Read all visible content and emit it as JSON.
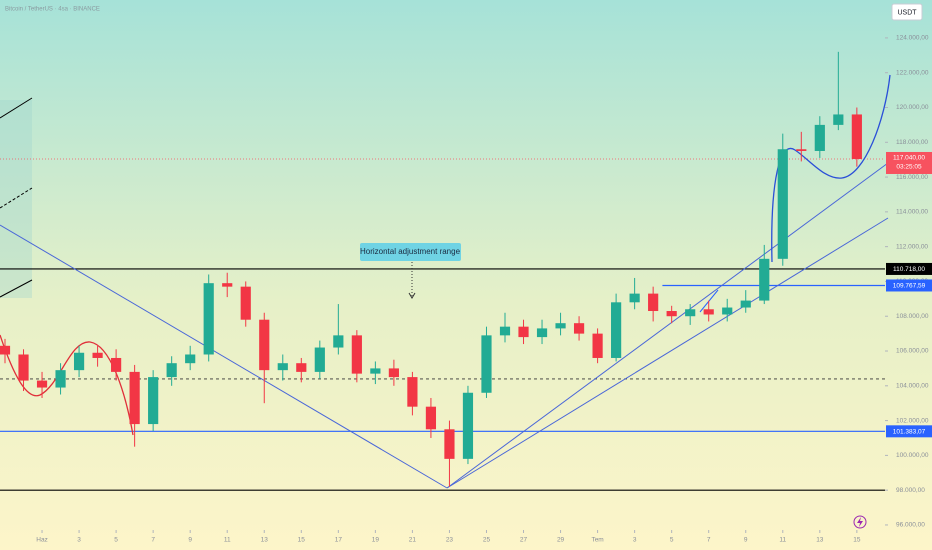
{
  "header": {
    "symbol": "Bitcoin / TetherUS · 4sa · BINANCE",
    "currency_button": "USDT"
  },
  "chart_data": {
    "type": "candlestick",
    "x": [
      -2,
      -1,
      0,
      1,
      2,
      3,
      4,
      5,
      6,
      7,
      8,
      9,
      10,
      11,
      12,
      13,
      14,
      15,
      16,
      17,
      18,
      19,
      20,
      21,
      22,
      23,
      24,
      25,
      26,
      27,
      28,
      29,
      30,
      31,
      32,
      33,
      34,
      35,
      36,
      37,
      38,
      39,
      40,
      41,
      42,
      43,
      44
    ],
    "open": [
      106300,
      105800,
      104300,
      103900,
      104900,
      105900,
      105600,
      104800,
      101800,
      104500,
      105300,
      105800,
      109900,
      109700,
      107800,
      104900,
      105300,
      104800,
      106200,
      106900,
      104700,
      105000,
      104500,
      102800,
      101500,
      99800,
      103600,
      106900,
      107400,
      106800,
      107300,
      107600,
      107000,
      105600,
      108800,
      109300,
      108300,
      108000,
      108400,
      108100,
      108500,
      108900,
      111300,
      117600,
      117500,
      119000,
      119600
    ],
    "high": [
      106700,
      106100,
      104800,
      105300,
      106300,
      106300,
      106100,
      105200,
      104900,
      105700,
      106300,
      110400,
      110500,
      110000,
      108200,
      105800,
      105600,
      106600,
      108700,
      107200,
      105400,
      105500,
      104800,
      103300,
      102000,
      104000,
      107400,
      108200,
      107800,
      107800,
      108200,
      108000,
      107300,
      109300,
      110200,
      109700,
      108600,
      108700,
      108900,
      109000,
      109500,
      112100,
      118500,
      118600,
      119500,
      123200,
      120000
    ],
    "low": [
      105300,
      103700,
      103300,
      103500,
      104500,
      105100,
      104300,
      100500,
      101400,
      104000,
      104900,
      105400,
      109100,
      107400,
      103000,
      104300,
      104200,
      104400,
      105800,
      104200,
      104100,
      104000,
      102300,
      101000,
      98200,
      99500,
      103300,
      106500,
      106400,
      106400,
      106900,
      106600,
      105300,
      105400,
      108400,
      107700,
      107600,
      107500,
      107700,
      107700,
      108200,
      108700,
      110900,
      116900,
      117100,
      118700,
      116600
    ],
    "close": [
      105800,
      104300,
      103900,
      104900,
      105900,
      105600,
      104800,
      101800,
      104500,
      105300,
      105800,
      109900,
      109700,
      107800,
      104900,
      105300,
      104800,
      106200,
      106900,
      104700,
      105000,
      104500,
      102800,
      101500,
      99800,
      103600,
      106900,
      107400,
      106800,
      107300,
      107600,
      107000,
      105600,
      108800,
      109300,
      108300,
      108000,
      108400,
      108100,
      108500,
      108900,
      111300,
      117600,
      117500,
      119000,
      119600,
      117040
    ],
    "up_color": "#22ab94",
    "down_color": "#f23645",
    "xlim": [
      -2.27,
      45.52
    ],
    "ylim": [
      95710,
      126180
    ],
    "xticks": [
      {
        "value": 0,
        "label": "Haz"
      },
      {
        "value": 2,
        "label": "3"
      },
      {
        "value": 4,
        "label": "5"
      },
      {
        "value": 6,
        "label": "7"
      },
      {
        "value": 8,
        "label": "9"
      },
      {
        "value": 10,
        "label": "11"
      },
      {
        "value": 12,
        "label": "13"
      },
      {
        "value": 14,
        "label": "15"
      },
      {
        "value": 16,
        "label": "17"
      },
      {
        "value": 18,
        "label": "19"
      },
      {
        "value": 20,
        "label": "21"
      },
      {
        "value": 22,
        "label": "23"
      },
      {
        "value": 24,
        "label": "25"
      },
      {
        "value": 26,
        "label": "27"
      },
      {
        "value": 28,
        "label": "29"
      },
      {
        "value": 30,
        "label": "Tem"
      },
      {
        "value": 32,
        "label": "3"
      },
      {
        "value": 34,
        "label": "5"
      },
      {
        "value": 36,
        "label": "7"
      },
      {
        "value": 38,
        "label": "9"
      },
      {
        "value": 40,
        "label": "11"
      },
      {
        "value": 42,
        "label": "13"
      },
      {
        "value": 44,
        "label": "15"
      }
    ],
    "yticks": [
      {
        "value": 96000,
        "label": "96.000,00"
      },
      {
        "value": 98000,
        "label": "98.000,00"
      },
      {
        "value": 100000,
        "label": "100.000,00"
      },
      {
        "value": 102000,
        "label": "102.000,00"
      },
      {
        "value": 104000,
        "label": "104.000,00"
      },
      {
        "value": 106000,
        "label": "106.000,00"
      },
      {
        "value": 108000,
        "label": "108.000,00"
      },
      {
        "value": 110000,
        "label": "110.000,00"
      },
      {
        "value": 112000,
        "label": "112.000,00"
      },
      {
        "value": 114000,
        "label": "114.000,00"
      },
      {
        "value": 116000,
        "label": "116.000,00"
      },
      {
        "value": 118000,
        "label": "118.000,00"
      },
      {
        "value": 120000,
        "label": "120.000,00"
      },
      {
        "value": 122000,
        "label": "122.000,00"
      },
      {
        "value": 124000,
        "label": "124.000,00"
      }
    ],
    "levels": [
      {
        "value": 110718,
        "label": "110.718,00",
        "color": "#000000"
      },
      {
        "value": 109767.59,
        "label": "109.767,59",
        "color": "#2962ff",
        "from": 33.5
      },
      {
        "value": 101383.07,
        "label": "101.383,07",
        "color": "#2962ff"
      },
      {
        "value": 98000,
        "color": "#000000"
      },
      {
        "value": 104394,
        "color": "#333333",
        "dash": true
      }
    ],
    "current_price": {
      "value": 117040,
      "label": "117.040,00",
      "countdown": "03:25:05",
      "color": "#f7525f"
    },
    "annotation": "Horizontal adjustment range"
  }
}
